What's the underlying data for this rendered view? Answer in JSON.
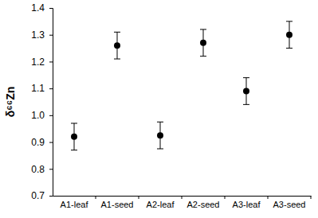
{
  "chart_data": {
    "type": "scatter",
    "y_label": "δ⁶⁶Zn",
    "categories": [
      "A1-leaf",
      "A1-seed",
      "A2-leaf",
      "A2-seed",
      "A3-leaf",
      "A3-seed"
    ],
    "values": [
      0.92,
      1.26,
      0.925,
      1.27,
      1.09,
      1.3
    ],
    "errors": [
      0.05,
      0.05,
      0.05,
      0.05,
      0.05,
      0.05
    ],
    "color": "#000000",
    "marker": "circle",
    "ylim": [
      0.7,
      1.4
    ],
    "yticks": [
      0.7,
      0.8,
      0.9,
      {
        "value": 1,
        "label": "1.0"
      },
      1.1,
      1.2,
      1.3,
      1.4
    ],
    "grid": false
  }
}
